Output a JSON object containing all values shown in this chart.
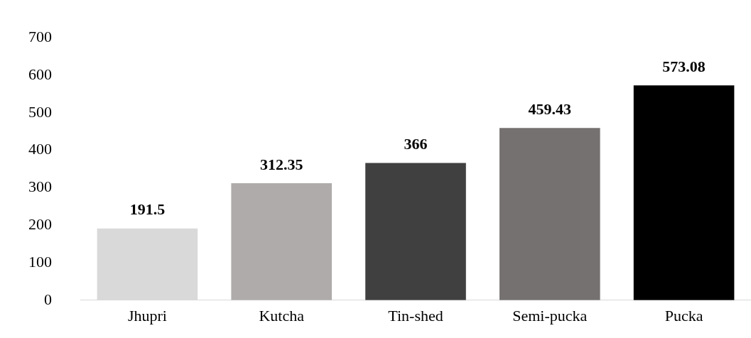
{
  "chart_data": {
    "type": "bar",
    "categories": [
      "Jhupri",
      "Kutcha",
      "Tin-shed",
      "Semi-pucka",
      "Pucka"
    ],
    "values": [
      191.5,
      312.35,
      366,
      459.43,
      573.08
    ],
    "colors": [
      "#d9d9d9",
      "#afabab",
      "#404040",
      "#767171",
      "#000000"
    ],
    "ylim": [
      0,
      700
    ],
    "yticks": [
      0,
      100,
      200,
      300,
      400,
      500,
      600,
      700
    ],
    "grid": false,
    "legend": false,
    "data_labels": true
  }
}
